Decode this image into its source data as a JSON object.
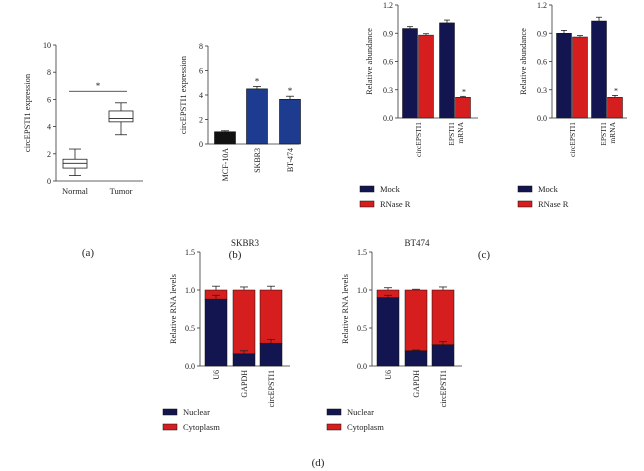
{
  "colors": {
    "navy": "#131551",
    "red": "#d61e1e",
    "blue": "#1d3b8f",
    "black": "#111111",
    "box": "#ffffff",
    "axis": "#333333"
  },
  "panel_labels": {
    "a": "(a)",
    "b": "(b)",
    "c": "(c)",
    "d": "(d)"
  },
  "chart_data": [
    {
      "id": "a",
      "type": "box",
      "title": "",
      "xlabel": "",
      "ylabel": "circEPSTI1 expression",
      "ylim": [
        0,
        10
      ],
      "yticks": [
        0,
        2,
        4,
        6,
        8,
        10
      ],
      "categories": [
        "Normal",
        "Tumor"
      ],
      "boxes": [
        {
          "name": "Normal",
          "min": 0.4,
          "q1": 0.95,
          "median": 1.3,
          "q3": 1.6,
          "max": 2.35
        },
        {
          "name": "Tumor",
          "min": 3.4,
          "q1": 4.35,
          "median": 4.6,
          "q3": 5.15,
          "max": 5.75
        }
      ],
      "significance": "*"
    },
    {
      "id": "b",
      "type": "bar",
      "ylabel": "circEPSTI1 expression",
      "ylim": [
        0,
        8
      ],
      "yticks": [
        0,
        2,
        4,
        6,
        8
      ],
      "categories": [
        "MCF-10A",
        "SKBR3",
        "BT-474"
      ],
      "values": [
        1.0,
        4.5,
        3.65
      ],
      "errors": [
        0.08,
        0.2,
        0.25
      ],
      "colors": [
        "black",
        "blue",
        "blue"
      ],
      "significance": [
        "",
        "*",
        "*"
      ]
    },
    {
      "id": "c1",
      "type": "bar",
      "ylabel": "Relative abundance",
      "ylim": [
        0,
        1.2
      ],
      "yticks": [
        "0.0",
        "0.3",
        "0.6",
        "0.9",
        "1.2"
      ],
      "categories": [
        "circEPSTI1",
        "EPSTI1 mRNA"
      ],
      "series": [
        {
          "name": "Mock",
          "values": [
            0.95,
            1.01
          ],
          "errors": [
            0.02,
            0.03
          ]
        },
        {
          "name": "RNase R",
          "values": [
            0.88,
            0.22
          ],
          "errors": [
            0.015,
            0.01
          ]
        }
      ],
      "significance": [
        [
          "",
          ""
        ],
        [
          "",
          "*"
        ]
      ],
      "legend": [
        "Mock",
        "RNase R"
      ]
    },
    {
      "id": "c2",
      "type": "bar",
      "ylabel": "Relative abundance",
      "ylim": [
        0,
        1.2
      ],
      "yticks": [
        "0.0",
        "0.3",
        "0.6",
        "0.9",
        "1.2"
      ],
      "categories": [
        "circEPSTI1",
        "EPSTI1 mRNA"
      ],
      "series": [
        {
          "name": "Mock",
          "values": [
            0.9,
            1.03
          ],
          "errors": [
            0.03,
            0.04
          ]
        },
        {
          "name": "RNase R",
          "values": [
            0.86,
            0.22
          ],
          "errors": [
            0.015,
            0.02
          ]
        }
      ],
      "significance": [
        [
          "",
          ""
        ],
        [
          "",
          "*"
        ]
      ],
      "legend": [
        "Mock",
        "RNase R"
      ]
    },
    {
      "id": "d1",
      "type": "stacked-bar",
      "title": "SKBR3",
      "ylabel": "Relative RNA levels",
      "ylim": [
        0,
        1.5
      ],
      "yticks": [
        "0.0",
        "0.5",
        "1.0",
        "1.5"
      ],
      "categories": [
        "U6",
        "GAPDH",
        "circEPSTI1"
      ],
      "series": [
        {
          "name": "Nuclear",
          "values": [
            0.88,
            0.16,
            0.3
          ],
          "errors": [
            0.05,
            0.04,
            0.05
          ]
        },
        {
          "name": "Cytoplasm",
          "values": [
            0.12,
            0.84,
            0.7
          ],
          "errors": [
            0.05,
            0.04,
            0.05
          ]
        }
      ],
      "legend": [
        "Nuclear",
        "Cytoplasm"
      ]
    },
    {
      "id": "d2",
      "type": "stacked-bar",
      "title": "BT474",
      "ylabel": "Relative RNA levels",
      "ylim": [
        0,
        1.5
      ],
      "yticks": [
        "0.0",
        "0.5",
        "1.0",
        "1.5"
      ],
      "categories": [
        "U6",
        "GAPDH",
        "circEPSTI1"
      ],
      "series": [
        {
          "name": "Nuclear",
          "values": [
            0.9,
            0.2,
            0.28
          ],
          "errors": [
            0.03,
            0.01,
            0.04
          ]
        },
        {
          "name": "Cytoplasm",
          "values": [
            0.1,
            0.8,
            0.72
          ],
          "errors": [
            0.03,
            0.01,
            0.04
          ]
        }
      ],
      "legend": [
        "Nuclear",
        "Cytoplasm"
      ]
    }
  ]
}
